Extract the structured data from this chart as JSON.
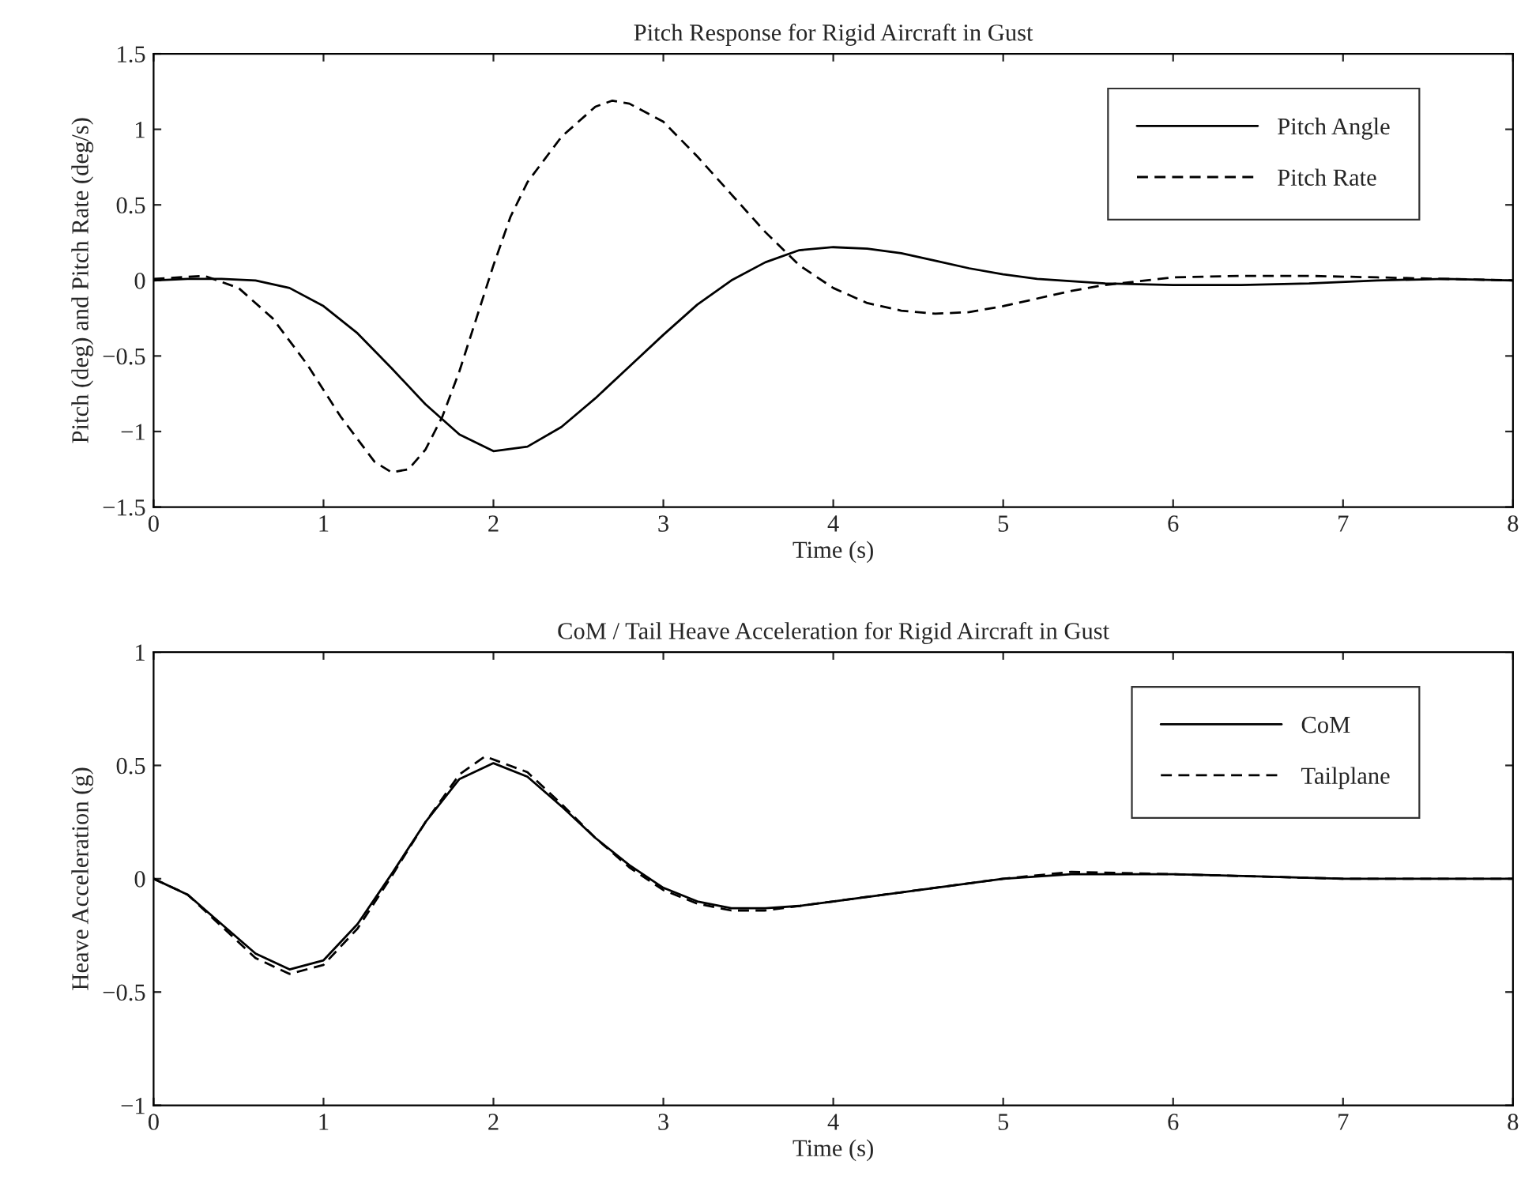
{
  "chart_data": [
    {
      "type": "line",
      "title": "Pitch Response for Rigid Aircraft in Gust",
      "xlabel": "Time (s)",
      "ylabel": "Pitch (deg) and Pitch Rate (deg/s)",
      "xlim": [
        0,
        8
      ],
      "xticks": [
        0,
        1,
        2,
        3,
        4,
        5,
        6,
        7,
        8
      ],
      "ylim": [
        -1.5,
        1.5
      ],
      "yticks": [
        {
          "value": -1.5,
          "label": "−1.5"
        },
        {
          "value": -1,
          "label": "−1"
        },
        {
          "value": -0.5,
          "label": "−0.5"
        },
        0,
        0.5,
        1,
        1.5
      ],
      "grid": false,
      "legend": "top right",
      "series": [
        {
          "name": "Pitch Angle",
          "color": "#000000",
          "line_style": "solid",
          "x": [
            0,
            0.2,
            0.4,
            0.6,
            0.8,
            1.0,
            1.2,
            1.4,
            1.6,
            1.8,
            2.0,
            2.2,
            2.4,
            2.6,
            2.8,
            3.0,
            3.2,
            3.4,
            3.6,
            3.8,
            4.0,
            4.2,
            4.4,
            4.6,
            4.8,
            5.0,
            5.2,
            5.6,
            6.0,
            6.4,
            6.8,
            7.2,
            7.6,
            8.0
          ],
          "values": [
            0,
            0.01,
            0.01,
            0,
            -0.05,
            -0.17,
            -0.35,
            -0.58,
            -0.82,
            -1.02,
            -1.13,
            -1.1,
            -0.97,
            -0.78,
            -0.57,
            -0.36,
            -0.16,
            0.0,
            0.12,
            0.2,
            0.22,
            0.21,
            0.18,
            0.13,
            0.08,
            0.04,
            0.01,
            -0.02,
            -0.03,
            -0.03,
            -0.02,
            0,
            0.01,
            0
          ]
        },
        {
          "name": "Pitch Rate",
          "color": "#000000",
          "line_style": "dashed",
          "x": [
            0,
            0.3,
            0.5,
            0.7,
            0.9,
            1.1,
            1.3,
            1.4,
            1.5,
            1.6,
            1.7,
            1.8,
            1.9,
            2.0,
            2.1,
            2.2,
            2.4,
            2.6,
            2.7,
            2.8,
            3.0,
            3.2,
            3.4,
            3.6,
            3.8,
            4.0,
            4.2,
            4.4,
            4.6,
            4.8,
            5.0,
            5.2,
            5.4,
            5.6,
            6.0,
            6.4,
            6.8,
            7.2,
            7.6,
            8.0
          ],
          "values": [
            0.01,
            0.03,
            -0.05,
            -0.25,
            -0.55,
            -0.9,
            -1.2,
            -1.27,
            -1.25,
            -1.12,
            -0.9,
            -0.6,
            -0.25,
            0.1,
            0.42,
            0.65,
            0.95,
            1.15,
            1.19,
            1.17,
            1.05,
            0.82,
            0.57,
            0.32,
            0.1,
            -0.05,
            -0.15,
            -0.2,
            -0.22,
            -0.21,
            -0.17,
            -0.12,
            -0.07,
            -0.03,
            0.02,
            0.03,
            0.03,
            0.02,
            0.01,
            0
          ]
        }
      ]
    },
    {
      "type": "line",
      "title": "CoM / Tail Heave Acceleration for Rigid Aircraft in Gust",
      "xlabel": "Time (s)",
      "ylabel": "Heave Acceleration (g)",
      "xlim": [
        0,
        8
      ],
      "xticks": [
        0,
        1,
        2,
        3,
        4,
        5,
        6,
        7,
        8
      ],
      "ylim": [
        -1,
        1
      ],
      "yticks": [
        {
          "value": -1,
          "label": "−1"
        },
        {
          "value": -0.5,
          "label": "−0.5"
        },
        0,
        0.5,
        1
      ],
      "grid": false,
      "legend": "top right",
      "series": [
        {
          "name": "CoM",
          "color": "#000000",
          "line_style": "solid",
          "x": [
            0,
            0.2,
            0.4,
            0.6,
            0.8,
            1.0,
            1.2,
            1.4,
            1.6,
            1.8,
            2.0,
            2.2,
            2.4,
            2.6,
            2.8,
            3.0,
            3.2,
            3.4,
            3.6,
            3.8,
            4.0,
            4.4,
            4.8,
            5.0,
            5.4,
            6.0,
            6.5,
            7.0,
            8.0
          ],
          "values": [
            0,
            -0.07,
            -0.2,
            -0.33,
            -0.4,
            -0.36,
            -0.2,
            0.02,
            0.25,
            0.44,
            0.51,
            0.45,
            0.32,
            0.18,
            0.06,
            -0.04,
            -0.1,
            -0.13,
            -0.13,
            -0.12,
            -0.1,
            -0.06,
            -0.02,
            0.0,
            0.02,
            0.02,
            0.01,
            0,
            0
          ]
        },
        {
          "name": "Tailplane",
          "color": "#000000",
          "line_style": "dashed",
          "x": [
            0,
            0.2,
            0.4,
            0.6,
            0.8,
            1.0,
            1.2,
            1.4,
            1.6,
            1.8,
            1.95,
            2.2,
            2.4,
            2.6,
            2.8,
            3.0,
            3.2,
            3.4,
            3.6,
            3.8,
            4.0,
            4.4,
            4.8,
            5.0,
            5.4,
            6.0,
            6.5,
            7.0,
            8.0
          ],
          "values": [
            0,
            -0.07,
            -0.21,
            -0.35,
            -0.42,
            -0.38,
            -0.22,
            0.01,
            0.25,
            0.46,
            0.54,
            0.47,
            0.33,
            0.18,
            0.05,
            -0.05,
            -0.11,
            -0.14,
            -0.14,
            -0.12,
            -0.1,
            -0.06,
            -0.02,
            0.0,
            0.03,
            0.02,
            0.01,
            0,
            0
          ]
        }
      ]
    }
  ]
}
